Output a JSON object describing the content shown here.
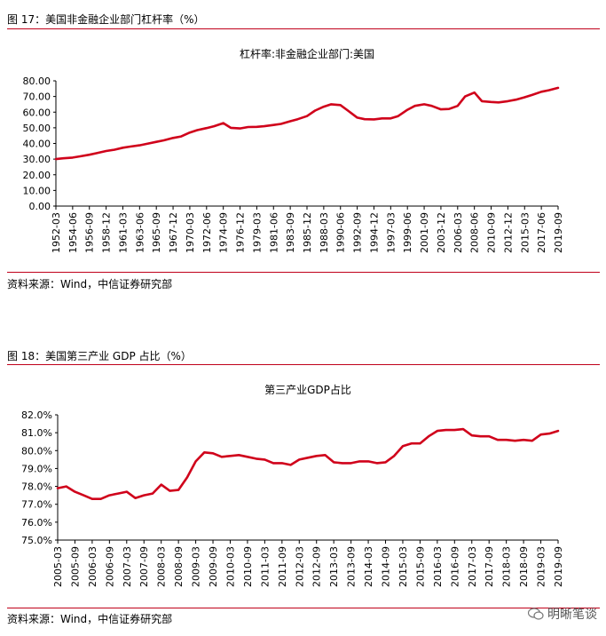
{
  "figures": [
    {
      "caption": "图 17：美国非金融企业部门杠杆率（%）",
      "source": "资料来源：Wind，中信证券研究部"
    },
    {
      "caption": "图 18：美国第三产业 GDP 占比（%）",
      "source": "资料来源：Wind，中信证券研究部"
    }
  ],
  "watermark": {
    "text": "明晰笔谈",
    "icon": "wechat-icon"
  },
  "colors": {
    "series": "#d0021b",
    "rule": "#c0001a",
    "axis": "#000000"
  },
  "chart_data": [
    {
      "type": "line",
      "title": "杠杆率:非金融企业部门:美国",
      "xlabel": "",
      "ylabel": "",
      "ylim": [
        0,
        80
      ],
      "yticks": [
        "0.00",
        "10.00",
        "20.00",
        "30.00",
        "40.00",
        "50.00",
        "60.00",
        "70.00",
        "80.00"
      ],
      "yticks_values": [
        0,
        10,
        20,
        30,
        40,
        50,
        60,
        70,
        80
      ],
      "categories": [
        "1952-03",
        "1954-06",
        "1956-09",
        "1958-12",
        "1961-03",
        "1963-06",
        "1965-09",
        "1967-12",
        "1970-03",
        "1972-06",
        "1974-09",
        "1976-12",
        "1979-03",
        "1981-06",
        "1983-09",
        "1985-12",
        "1988-03",
        "1990-06",
        "1992-09",
        "1994-12",
        "1997-03",
        "1999-06",
        "2001-09",
        "2003-12",
        "2006-03",
        "2008-06",
        "2010-09",
        "2012-12",
        "2015-03",
        "2017-06",
        "2019-09"
      ],
      "series": [
        {
          "x": [
            "1952-03",
            "1953-03",
            "1954-06",
            "1955-06",
            "1956-09",
            "1957-09",
            "1958-12",
            "1960-01",
            "1961-03",
            "1962-03",
            "1963-06",
            "1964-06",
            "1965-09",
            "1966-09",
            "1967-12",
            "1969-01",
            "1970-03",
            "1971-03",
            "1972-06",
            "1973-06",
            "1974-09",
            "1975-09",
            "1976-12",
            "1978-01",
            "1979-03",
            "1980-03",
            "1981-06",
            "1982-06",
            "1983-09",
            "1984-09",
            "1985-12",
            "1987-01",
            "1988-03",
            "1989-03",
            "1990-06",
            "1991-06",
            "1992-09",
            "1993-09",
            "1994-12",
            "1996-01",
            "1997-03",
            "1998-03",
            "1999-06",
            "2000-06",
            "2001-09",
            "2002-09",
            "2003-12",
            "2005-01",
            "2006-03",
            "2007-03",
            "2008-06",
            "2009-06",
            "2010-09",
            "2011-09",
            "2012-12",
            "2014-01",
            "2015-03",
            "2016-03",
            "2017-06",
            "2018-06",
            "2019-09"
          ],
          "values": [
            30.0,
            30.5,
            31.0,
            31.8,
            32.8,
            33.8,
            35.2,
            36.0,
            37.3,
            38.0,
            38.8,
            39.8,
            41.0,
            42.0,
            43.5,
            44.5,
            47.0,
            48.5,
            49.8,
            51.0,
            53.0,
            50.0,
            49.6,
            50.5,
            50.6,
            51.0,
            51.8,
            52.5,
            54.2,
            55.5,
            57.5,
            61.0,
            63.5,
            65.0,
            64.5,
            61.0,
            56.5,
            55.5,
            55.4,
            56.0,
            56.0,
            57.5,
            61.5,
            64.0,
            65.0,
            64.0,
            61.8,
            62.0,
            64.0,
            70.0,
            72.5,
            67.0,
            66.5,
            66.2,
            67.0,
            68.0,
            69.5,
            71.0,
            73.0,
            74.0,
            75.5
          ]
        }
      ]
    },
    {
      "type": "line",
      "title": "第三产业GDP占比",
      "xlabel": "",
      "ylabel": "",
      "ylim": [
        75,
        82
      ],
      "yticks": [
        "75.0%",
        "76.0%",
        "77.0%",
        "78.0%",
        "79.0%",
        "80.0%",
        "81.0%",
        "82.0%"
      ],
      "yticks_values": [
        75,
        76,
        77,
        78,
        79,
        80,
        81,
        82
      ],
      "categories": [
        "2005-03",
        "2005-09",
        "2006-03",
        "2006-09",
        "2007-03",
        "2007-09",
        "2008-03",
        "2008-09",
        "2009-03",
        "2009-09",
        "2010-03",
        "2010-09",
        "2011-03",
        "2011-09",
        "2012-03",
        "2012-09",
        "2013-03",
        "2013-09",
        "2014-03",
        "2014-09",
        "2015-03",
        "2015-09",
        "2016-03",
        "2016-09",
        "2017-03",
        "2017-09",
        "2018-03",
        "2018-09",
        "2019-03",
        "2019-09"
      ],
      "series": [
        {
          "x": [
            "2005-03",
            "2005-06",
            "2005-09",
            "2005-12",
            "2006-03",
            "2006-06",
            "2006-09",
            "2006-12",
            "2007-03",
            "2007-06",
            "2007-09",
            "2007-12",
            "2008-03",
            "2008-06",
            "2008-09",
            "2008-12",
            "2009-03",
            "2009-06",
            "2009-09",
            "2009-12",
            "2010-03",
            "2010-06",
            "2010-09",
            "2010-12",
            "2011-03",
            "2011-06",
            "2011-09",
            "2011-12",
            "2012-03",
            "2012-06",
            "2012-09",
            "2012-12",
            "2013-03",
            "2013-06",
            "2013-09",
            "2013-12",
            "2014-03",
            "2014-06",
            "2014-09",
            "2014-12",
            "2015-03",
            "2015-06",
            "2015-09",
            "2015-12",
            "2016-03",
            "2016-06",
            "2016-09",
            "2016-12",
            "2017-03",
            "2017-06",
            "2017-09",
            "2017-12",
            "2018-03",
            "2018-06",
            "2018-09",
            "2018-12",
            "2019-03",
            "2019-06",
            "2019-09"
          ],
          "values": [
            77.9,
            78.0,
            77.7,
            77.5,
            77.3,
            77.3,
            77.5,
            77.6,
            77.7,
            77.35,
            77.5,
            77.6,
            78.1,
            77.75,
            77.8,
            78.5,
            79.4,
            79.9,
            79.85,
            79.65,
            79.7,
            79.75,
            79.65,
            79.55,
            79.5,
            79.3,
            79.3,
            79.2,
            79.5,
            79.6,
            79.7,
            79.75,
            79.35,
            79.3,
            79.3,
            79.4,
            79.4,
            79.3,
            79.35,
            79.7,
            80.25,
            80.4,
            80.4,
            80.8,
            81.1,
            81.15,
            81.15,
            81.2,
            80.85,
            80.8,
            80.8,
            80.6,
            80.6,
            80.55,
            80.6,
            80.55,
            80.9,
            80.95,
            81.1
          ]
        }
      ]
    }
  ]
}
